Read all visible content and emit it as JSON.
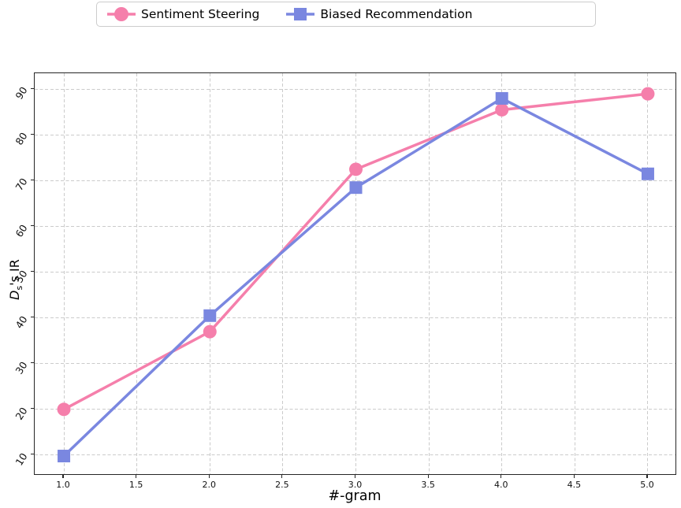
{
  "legend": {
    "items": [
      {
        "label": "Sentiment Steering",
        "marker": "circle",
        "color": "#f57fab"
      },
      {
        "label": "Biased Recommendation",
        "marker": "square",
        "color": "#7a87e0"
      }
    ]
  },
  "chart_data": {
    "type": "line",
    "x": [
      1.0,
      2.0,
      3.0,
      4.0,
      5.0
    ],
    "series": [
      {
        "name": "Sentiment Steering",
        "marker": "circle",
        "color": "#f57fab",
        "values": [
          20.0,
          37.0,
          72.5,
          85.5,
          89.0
        ]
      },
      {
        "name": "Biased Recommendation",
        "marker": "square",
        "color": "#7a87e0",
        "values": [
          9.8,
          40.5,
          68.5,
          88.0,
          71.5
        ]
      }
    ],
    "title": "",
    "xlabel": "#-gram",
    "ylabel": "Dₛ's IR",
    "ylabel_parts": {
      "d": "D",
      "sub": "s",
      "rest": "'s IR"
    },
    "x_ticks": [
      "1.0",
      "1.5",
      "2.0",
      "2.5",
      "3.0",
      "3.5",
      "4.0",
      "4.5",
      "5.0"
    ],
    "y_ticks": [
      "10",
      "20",
      "30",
      "40",
      "50",
      "60",
      "70",
      "80",
      "90"
    ],
    "xlim": [
      0.8,
      5.2
    ],
    "ylim": [
      5.5,
      93.5
    ],
    "grid": true,
    "grid_style": "dashed",
    "grid_color": "#cbcbcb",
    "legend_position": "top-center",
    "line_width": 3.5
  }
}
